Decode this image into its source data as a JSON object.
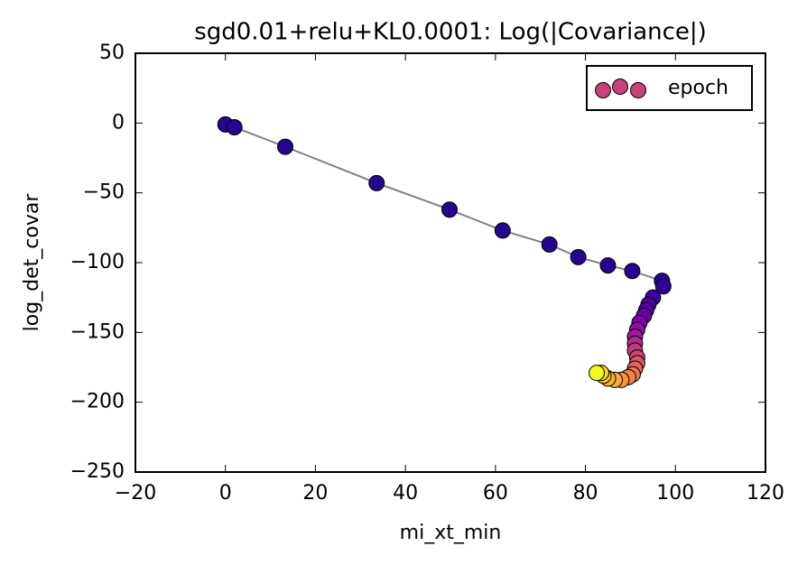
{
  "chart_data": {
    "type": "scatter",
    "title": "sgd0.01+relu+KL0.0001: Log(|Covariance|)",
    "x_label": "mi_xt_min",
    "y_label": "log_det_covar",
    "xlim": [
      -20,
      120
    ],
    "ylim": [
      -250,
      50
    ],
    "xticks": [
      {
        "value": -20,
        "label": "−20"
      },
      0,
      20,
      40,
      60,
      80,
      100,
      120
    ],
    "yticks": [
      {
        "value": -250,
        "label": "−250"
      },
      {
        "value": -200,
        "label": "−200"
      },
      {
        "value": -150,
        "label": "−150"
      },
      {
        "value": -100,
        "label": "−100"
      },
      {
        "value": -50,
        "label": "−50"
      },
      0,
      50
    ],
    "line_color": "#808080",
    "legend_position": "upper right",
    "series": [
      {
        "name": "epoch",
        "color": "#c9417b",
        "x": [
          0,
          2,
          13.3,
          33.6,
          49.8,
          61.6,
          72,
          78.4,
          85,
          90.4,
          97,
          97.3,
          95,
          94,
          93.5,
          93,
          92,
          91.5,
          91,
          91,
          91,
          91.5,
          91.5,
          91,
          90.5,
          89.5,
          88,
          86.5,
          85,
          84,
          83.5,
          82.5
        ],
        "values": [
          -1,
          -3,
          -17,
          -43,
          -62,
          -77,
          -87,
          -96,
          -102,
          -106,
          -113,
          -117,
          -125,
          -130,
          -134,
          -138,
          -143,
          -148,
          -153,
          -158,
          -163,
          -168,
          -172,
          -176,
          -180,
          -182,
          -184,
          -184,
          -183,
          -181,
          -179,
          -179
        ],
        "point_colors": [
          "#260591",
          "#260591",
          "#260591",
          "#260591",
          "#260591",
          "#260591",
          "#260591",
          "#260591",
          "#260591",
          "#260591",
          "#2a0593",
          "#2e0595",
          "#3a049a",
          "#4c02a1",
          "#5c01a6",
          "#6a00a8",
          "#7e03a8",
          "#8f0da4",
          "#a01a9c",
          "#b12a90",
          "#bf3984",
          "#cc4778",
          "#d8576b",
          "#e16462",
          "#eb7655",
          "#f2844b",
          "#f89540",
          "#fca636",
          "#fdb42f",
          "#fdc527",
          "#f8d626",
          "#f0f921"
        ]
      }
    ]
  }
}
